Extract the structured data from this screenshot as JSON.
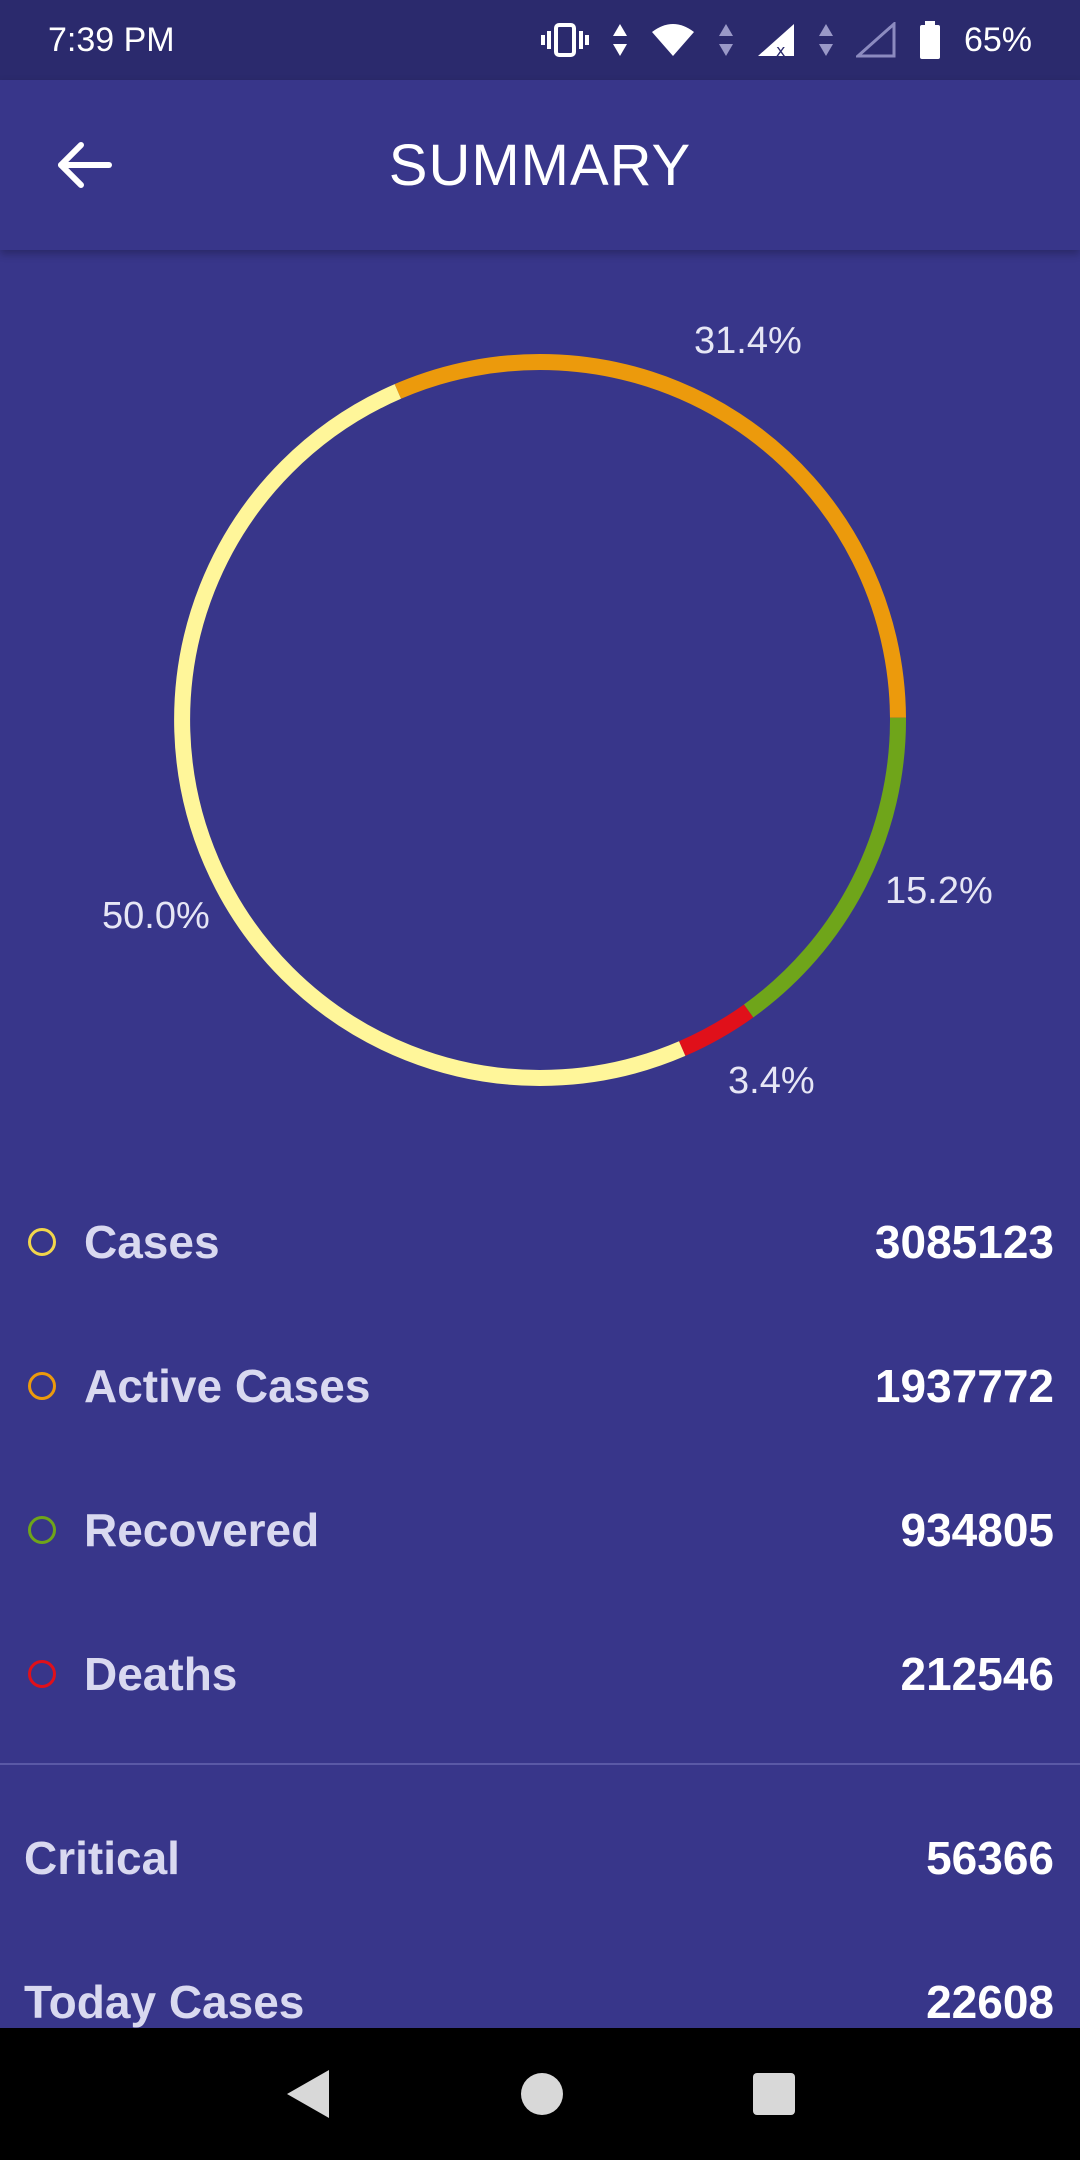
{
  "status": {
    "time": "7:39 PM",
    "battery": "65%"
  },
  "appbar": {
    "title": "SUMMARY"
  },
  "chart_data": {
    "type": "pie",
    "style": "ring",
    "slices": [
      {
        "label": "Active Cases",
        "percent": 31.4,
        "color": "#ec9a0c"
      },
      {
        "label": "Recovered",
        "percent": 15.2,
        "color": "#6fa51a"
      },
      {
        "label": "Deaths",
        "percent": 3.4,
        "color": "#e0101a"
      },
      {
        "label": "Cases",
        "percent": 50.0,
        "color": "#fff69a"
      }
    ],
    "labels": {
      "active": "31.4%",
      "recovered": "15.2%",
      "deaths": "3.4%",
      "cases": "50.0%"
    }
  },
  "legend": {
    "items": [
      {
        "label": "Cases",
        "value": "3085123",
        "color": "#f2d64b"
      },
      {
        "label": "Active Cases",
        "value": "1937772",
        "color": "#ec9a0c"
      },
      {
        "label": "Recovered",
        "value": "934805",
        "color": "#6fa51a"
      },
      {
        "label": "Deaths",
        "value": "212546",
        "color": "#e0101a"
      }
    ]
  },
  "extra": {
    "critical_label": "Critical",
    "critical_value": "56366",
    "today_label": "Today Cases",
    "today_value": "22608"
  },
  "icons": {
    "back": "arrow-left-icon",
    "nav_back": "triangle-back-icon",
    "nav_home": "circle-home-icon",
    "nav_recents": "square-recents-icon"
  }
}
